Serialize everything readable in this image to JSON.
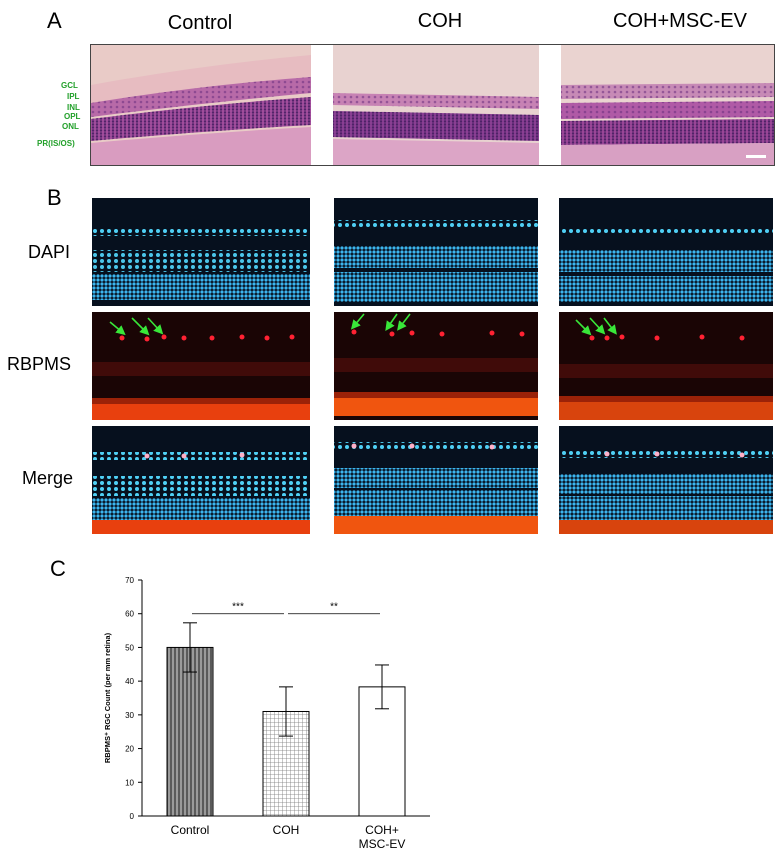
{
  "panel_a": {
    "letter": "A",
    "columns": [
      "Control",
      "COH",
      "COH+MSC-EV"
    ],
    "layers": [
      "GCL",
      "IPL",
      "INL",
      "OPL",
      "ONL",
      "PR(IS/OS)"
    ]
  },
  "panel_b": {
    "letter": "B",
    "rows": [
      "DAPI",
      "RBPMS",
      "Merge"
    ]
  },
  "panel_c": {
    "letter": "C"
  },
  "chart_data": {
    "type": "bar",
    "categories": [
      "Control",
      "COH",
      "COH+\nMSC-EV"
    ],
    "values": [
      50,
      31,
      38.3
    ],
    "errors": [
      7.3,
      7.3,
      6.5
    ],
    "ylabel": "RBPMS⁺ RGC Count (per mm retina)",
    "ylim": [
      0,
      70
    ],
    "yticks": [
      0,
      10,
      20,
      30,
      40,
      50,
      60,
      70
    ],
    "bar_fills": [
      "vertical-stripes",
      "grid",
      "white"
    ],
    "significance": [
      {
        "from": "Control",
        "to": "COH",
        "label": "***"
      },
      {
        "from": "COH",
        "to": "COH+\nMSC-EV",
        "label": "**"
      }
    ]
  }
}
